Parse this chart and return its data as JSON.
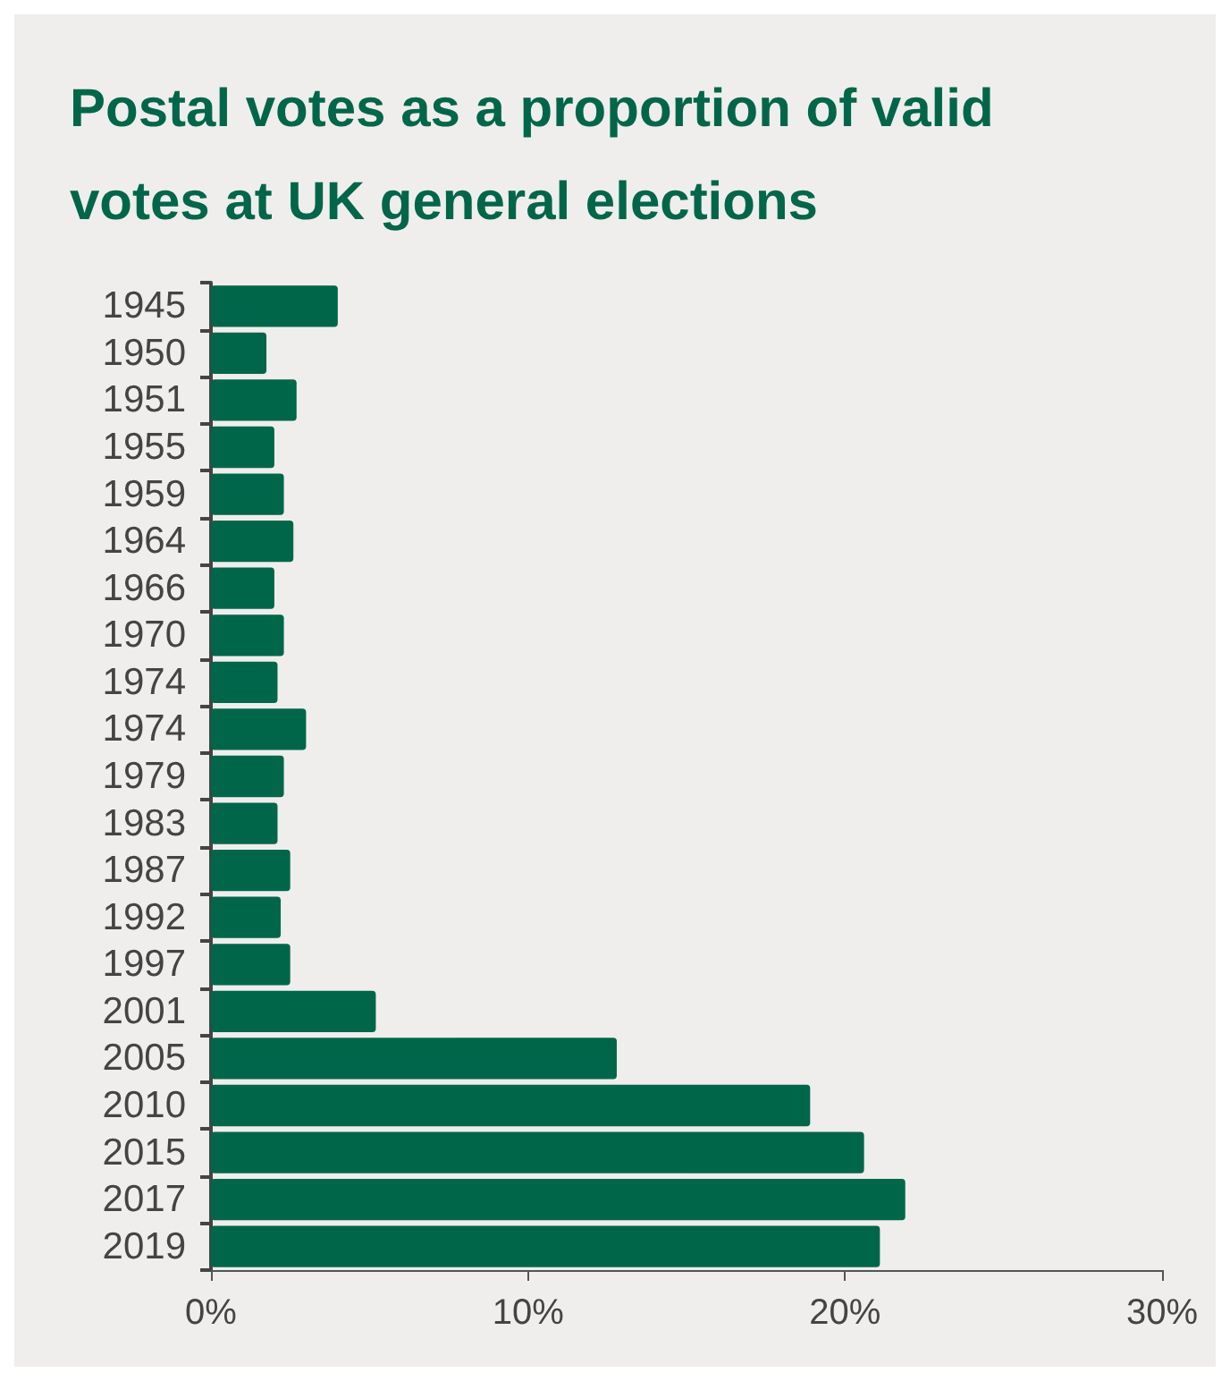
{
  "chart_data": {
    "type": "bar",
    "orientation": "horizontal",
    "title": "Postal votes as a proportion of valid votes at UK general elections",
    "categories": [
      "1945",
      "1950",
      "1951",
      "1955",
      "1959",
      "1964",
      "1966",
      "1970",
      "1974",
      "1974",
      "1979",
      "1983",
      "1987",
      "1992",
      "1997",
      "2001",
      "2005",
      "2010",
      "2015",
      "2017",
      "2019"
    ],
    "values": [
      4.0,
      1.75,
      2.7,
      2.0,
      2.3,
      2.6,
      2.0,
      2.3,
      2.1,
      3.0,
      2.3,
      2.1,
      2.5,
      2.2,
      2.5,
      5.2,
      12.8,
      18.9,
      20.6,
      21.9,
      21.1
    ],
    "color": "#00664a",
    "xlim": [
      0,
      30
    ],
    "xticks": [
      {
        "value": 0,
        "label": "0%"
      },
      {
        "value": 10,
        "label": "10%"
      },
      {
        "value": 20,
        "label": "20%"
      },
      {
        "value": 30,
        "label": "30%"
      }
    ],
    "grid": false
  }
}
